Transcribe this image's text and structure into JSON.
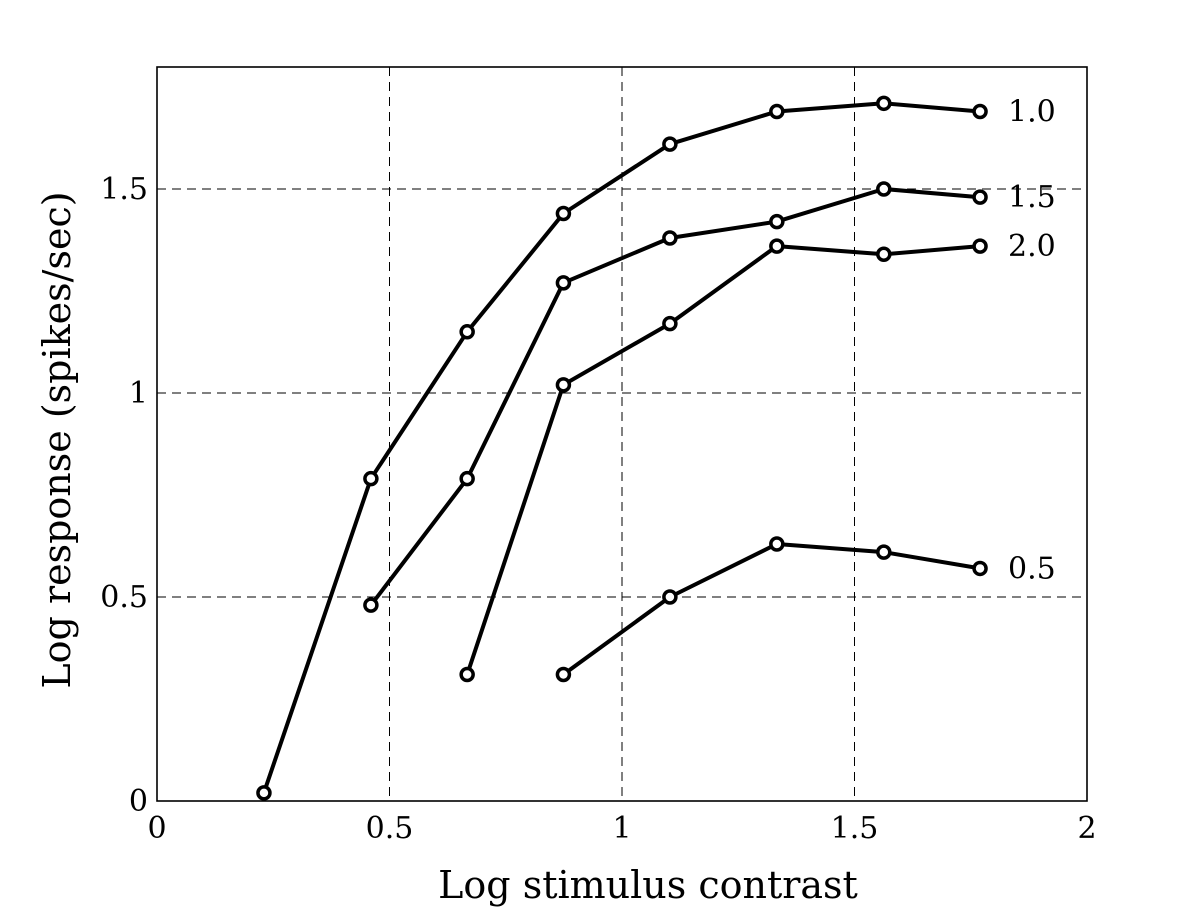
{
  "chart_data": {
    "type": "line",
    "title": "",
    "xlabel": "Log stimulus contrast",
    "ylabel": "Log response (spikes/sec)",
    "xlim": [
      0,
      2
    ],
    "ylim": [
      0,
      1.8
    ],
    "xticks": [
      0,
      0.5,
      1,
      1.5,
      2
    ],
    "xtick_labels": [
      "0",
      "0.5",
      "1",
      "1.5",
      "2"
    ],
    "yticks": [
      0,
      0.5,
      1,
      1.5
    ],
    "ytick_labels": [
      "0",
      "0.5",
      "1",
      "1.5"
    ],
    "grid": true,
    "legend": "inline labels at right end of each line",
    "series": [
      {
        "name": "1.0",
        "x": [
          0.23,
          0.46,
          0.667,
          0.874,
          1.103,
          1.333,
          1.563,
          1.77
        ],
        "y": [
          0.02,
          0.79,
          1.15,
          1.44,
          1.61,
          1.69,
          1.71,
          1.69
        ]
      },
      {
        "name": "1.5",
        "x": [
          0.46,
          0.667,
          0.874,
          1.103,
          1.333,
          1.563,
          1.77
        ],
        "y": [
          0.48,
          0.79,
          1.27,
          1.38,
          1.42,
          1.5,
          1.48
        ]
      },
      {
        "name": "2.0",
        "x": [
          0.667,
          0.874,
          1.103,
          1.333,
          1.563,
          1.77
        ],
        "y": [
          0.31,
          1.02,
          1.17,
          1.36,
          1.34,
          1.36
        ]
      },
      {
        "name": "0.5",
        "x": [
          0.874,
          1.103,
          1.333,
          1.563,
          1.77
        ],
        "y": [
          0.31,
          0.5,
          0.63,
          0.61,
          0.57
        ]
      }
    ]
  }
}
